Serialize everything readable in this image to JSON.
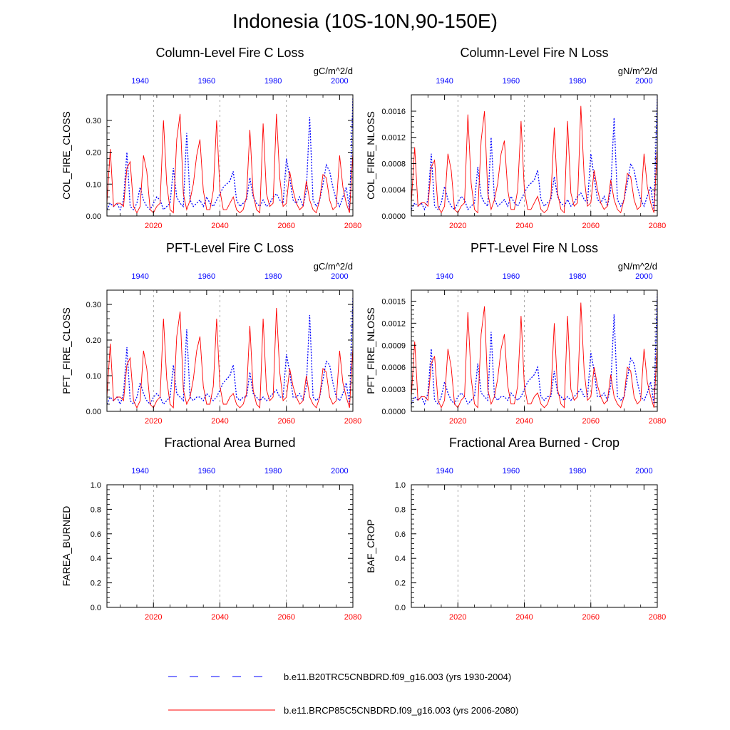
{
  "figure": {
    "title": "Indonesia (10S-10N,90-150E)"
  },
  "colors": {
    "series_hist": "#0000ff",
    "series_rcp": "#ff0000",
    "axis": "#000000",
    "grid": "#888888"
  },
  "legend": {
    "placement": "bottom-center",
    "entries": [
      {
        "label": "b.e11.B20TRC5CNBDRD.f09_g16.003 (yrs 1930-2004)",
        "color": "#0000ff",
        "style": "dashed"
      },
      {
        "label": "b.e11.BRCP85C5CNBDRD.f09_g16.003 (yrs 2006-2080)",
        "color": "#ff0000",
        "style": "solid"
      }
    ]
  },
  "chart_data": [
    {
      "type": "line",
      "title": "Column-Level Fire C Loss",
      "units": "gC/m^2/d",
      "ylabel": "COL_FIRE_CLOSS",
      "ylim": [
        0,
        0.38
      ],
      "yticks": [
        0,
        0.1,
        0.2,
        0.3
      ],
      "ytick_labels": [
        "0.00",
        "0.10",
        "0.20",
        "0.30"
      ],
      "xlim_bottom": [
        2006,
        2080
      ],
      "xticks_bottom": [
        2020,
        2040,
        2060,
        2080
      ],
      "xticks_top": [
        1940,
        1960,
        1980,
        2000
      ],
      "top_axis_offset": 76,
      "grid": "vertical dashed at bottom ticks",
      "series": [
        {
          "role": "hist",
          "x_start": 1930,
          "x_end": 2004,
          "values": [
            0.02,
            0.04,
            0.03,
            0.04,
            0.02,
            0.05,
            0.2,
            0.03,
            0.02,
            0.04,
            0.09,
            0.05,
            0.03,
            0.02,
            0.04,
            0.06,
            0.05,
            0.02,
            0.03,
            0.04,
            0.15,
            0.06,
            0.04,
            0.03,
            0.26,
            0.05,
            0.03,
            0.04,
            0.05,
            0.03,
            0.06,
            0.04,
            0.03,
            0.05,
            0.07,
            0.09,
            0.1,
            0.11,
            0.14,
            0.05,
            0.03,
            0.04,
            0.05,
            0.12,
            0.06,
            0.04,
            0.03,
            0.05,
            0.03,
            0.04,
            0.06,
            0.07,
            0.05,
            0.04,
            0.18,
            0.12,
            0.05,
            0.04,
            0.06,
            0.03,
            0.08,
            0.31,
            0.05,
            0.03,
            0.05,
            0.1,
            0.16,
            0.14,
            0.09,
            0.05,
            0.03,
            0.06,
            0.09,
            0.02,
            0.37
          ]
        },
        {
          "role": "rcp",
          "x_start": 2006,
          "x_end": 2080,
          "values": [
            0.04,
            0.21,
            0.03,
            0.04,
            0.04,
            0.03,
            0.15,
            0.17,
            0.03,
            0.01,
            0.03,
            0.19,
            0.14,
            0.02,
            0.01,
            0.03,
            0.04,
            0.3,
            0.1,
            0.02,
            0.01,
            0.24,
            0.32,
            0.07,
            0.02,
            0.05,
            0.1,
            0.19,
            0.24,
            0.08,
            0.02,
            0.02,
            0.08,
            0.3,
            0.08,
            0.02,
            0.02,
            0.04,
            0.06,
            0.02,
            0.01,
            0.02,
            0.06,
            0.27,
            0.07,
            0.02,
            0.01,
            0.29,
            0.07,
            0.03,
            0.04,
            0.32,
            0.12,
            0.03,
            0.04,
            0.14,
            0.08,
            0.04,
            0.02,
            0.03,
            0.11,
            0.05,
            0.02,
            0.01,
            0.05,
            0.13,
            0.12,
            0.05,
            0.02,
            0.03,
            0.19,
            0.09,
            0.04,
            0.01,
            0.2
          ]
        }
      ]
    },
    {
      "type": "line",
      "title": "Column-Level Fire N Loss",
      "units": "gN/m^2/d",
      "ylabel": "COL_FIRE_NLOSS",
      "ylim": [
        0,
        0.00185
      ],
      "yticks": [
        0,
        0.0004,
        0.0008,
        0.0012,
        0.0016
      ],
      "ytick_labels": [
        "0.0000",
        "0.0004",
        "0.0008",
        "0.0012",
        "0.0016"
      ],
      "xlim_bottom": [
        2006,
        2080
      ],
      "xticks_bottom": [
        2020,
        2040,
        2060,
        2080
      ],
      "xticks_top": [
        1940,
        1960,
        1980,
        2000
      ],
      "top_axis_offset": 76,
      "grid": "vertical dashed at bottom ticks",
      "series": [
        {
          "role": "hist",
          "x_start": 1930,
          "x_end": 2004,
          "values": [
            0.0001,
            0.0002,
            0.00015,
            0.0002,
            0.0001,
            0.00025,
            0.00095,
            0.00015,
            0.0001,
            0.0002,
            0.00045,
            0.00025,
            0.00015,
            0.0001,
            0.0002,
            0.0003,
            0.00025,
            0.0001,
            0.00015,
            0.0002,
            0.00075,
            0.0003,
            0.0002,
            0.00015,
            0.0012,
            0.00025,
            0.00015,
            0.0002,
            0.00025,
            0.00015,
            0.0003,
            0.0002,
            0.00015,
            0.00025,
            0.00035,
            0.00045,
            0.0005,
            0.00055,
            0.0007,
            0.00025,
            0.00015,
            0.0002,
            0.00025,
            0.0006,
            0.0003,
            0.0002,
            0.00015,
            0.00025,
            0.00015,
            0.0002,
            0.0003,
            0.00035,
            0.00025,
            0.0002,
            0.00095,
            0.0006,
            0.00025,
            0.0002,
            0.0003,
            0.00015,
            0.0004,
            0.0015,
            0.00025,
            0.00015,
            0.00025,
            0.0005,
            0.0008,
            0.0007,
            0.00045,
            0.00025,
            0.00015,
            0.0003,
            0.00045,
            0.0001,
            0.00183
          ]
        },
        {
          "role": "rcp",
          "x_start": 2006,
          "x_end": 2080,
          "values": [
            0.0002,
            0.00105,
            0.00015,
            0.0002,
            0.0002,
            0.00015,
            0.00075,
            0.00085,
            0.00015,
            5e-05,
            0.00015,
            0.00095,
            0.0007,
            0.0001,
            5e-05,
            0.00015,
            0.0002,
            0.00155,
            0.0005,
            0.0001,
            5e-05,
            0.00115,
            0.0016,
            0.00035,
            0.0001,
            0.00025,
            0.0005,
            0.00095,
            0.00115,
            0.0004,
            0.0001,
            0.0001,
            0.0004,
            0.00145,
            0.0004,
            0.0001,
            0.0001,
            0.0002,
            0.0003,
            0.0001,
            5e-05,
            0.0001,
            0.0003,
            0.00135,
            0.00035,
            0.0001,
            5e-05,
            0.00145,
            0.00035,
            0.00015,
            0.0002,
            0.00168,
            0.0006,
            0.00015,
            0.0002,
            0.0007,
            0.0004,
            0.0002,
            0.0001,
            0.00015,
            0.00055,
            0.00025,
            0.0001,
            5e-05,
            0.00025,
            0.00065,
            0.0006,
            0.00025,
            0.0001,
            0.00015,
            0.00095,
            0.00045,
            0.0002,
            5e-05,
            0.00105
          ]
        }
      ]
    },
    {
      "type": "line",
      "title": "PFT-Level Fire C Loss",
      "units": "gC/m^2/d",
      "ylabel": "PFT_FIRE_CLOSS",
      "ylim": [
        0,
        0.34
      ],
      "yticks": [
        0,
        0.1,
        0.2,
        0.3
      ],
      "ytick_labels": [
        "0.00",
        "0.10",
        "0.20",
        "0.30"
      ],
      "xlim_bottom": [
        2006,
        2080
      ],
      "xticks_bottom": [
        2020,
        2040,
        2060,
        2080
      ],
      "xticks_top": [
        1940,
        1960,
        1980,
        2000
      ],
      "top_axis_offset": 76,
      "grid": "vertical dashed at bottom ticks",
      "series": [
        {
          "role": "hist",
          "x_start": 1930,
          "x_end": 2004,
          "values": [
            0.02,
            0.04,
            0.03,
            0.04,
            0.02,
            0.05,
            0.18,
            0.03,
            0.02,
            0.04,
            0.08,
            0.05,
            0.03,
            0.02,
            0.04,
            0.05,
            0.04,
            0.02,
            0.03,
            0.04,
            0.13,
            0.05,
            0.04,
            0.03,
            0.23,
            0.04,
            0.03,
            0.04,
            0.04,
            0.03,
            0.05,
            0.04,
            0.03,
            0.04,
            0.06,
            0.08,
            0.09,
            0.1,
            0.13,
            0.04,
            0.03,
            0.04,
            0.04,
            0.11,
            0.05,
            0.04,
            0.03,
            0.04,
            0.03,
            0.04,
            0.05,
            0.06,
            0.04,
            0.04,
            0.16,
            0.11,
            0.04,
            0.04,
            0.05,
            0.03,
            0.07,
            0.27,
            0.04,
            0.03,
            0.04,
            0.09,
            0.14,
            0.13,
            0.08,
            0.04,
            0.03,
            0.05,
            0.08,
            0.02,
            0.32
          ]
        },
        {
          "role": "rcp",
          "x_start": 2006,
          "x_end": 2080,
          "values": [
            0.04,
            0.19,
            0.03,
            0.04,
            0.04,
            0.03,
            0.13,
            0.15,
            0.03,
            0.01,
            0.03,
            0.17,
            0.12,
            0.02,
            0.01,
            0.03,
            0.04,
            0.26,
            0.09,
            0.02,
            0.01,
            0.21,
            0.28,
            0.06,
            0.02,
            0.04,
            0.09,
            0.17,
            0.21,
            0.07,
            0.02,
            0.02,
            0.07,
            0.26,
            0.07,
            0.02,
            0.02,
            0.04,
            0.05,
            0.02,
            0.01,
            0.02,
            0.05,
            0.24,
            0.06,
            0.02,
            0.01,
            0.26,
            0.06,
            0.03,
            0.04,
            0.29,
            0.11,
            0.03,
            0.04,
            0.12,
            0.07,
            0.04,
            0.02,
            0.03,
            0.1,
            0.04,
            0.02,
            0.01,
            0.04,
            0.12,
            0.11,
            0.04,
            0.02,
            0.03,
            0.17,
            0.08,
            0.04,
            0.01,
            0.18
          ]
        }
      ]
    },
    {
      "type": "line",
      "title": "PFT-Level Fire N Loss",
      "units": "gN/m^2/d",
      "ylabel": "PFT_FIRE_NLOSS",
      "ylim": [
        0,
        0.00165
      ],
      "yticks": [
        0,
        0.0003,
        0.0006,
        0.0009,
        0.0012,
        0.0015
      ],
      "ytick_labels": [
        "0.0000",
        "0.0003",
        "0.0006",
        "0.0009",
        "0.0012",
        "0.0015"
      ],
      "xlim_bottom": [
        2006,
        2080
      ],
      "xticks_bottom": [
        2020,
        2040,
        2060,
        2080
      ],
      "xticks_top": [
        1940,
        1960,
        1980,
        2000
      ],
      "top_axis_offset": 76,
      "grid": "vertical dashed at bottom ticks",
      "series": [
        {
          "role": "hist",
          "x_start": 1930,
          "x_end": 2004,
          "values": [
            0.0001,
            0.0002,
            0.00015,
            0.0002,
            0.0001,
            0.00025,
            0.00085,
            0.00015,
            0.0001,
            0.0002,
            0.0004,
            0.00025,
            0.00015,
            0.0001,
            0.0002,
            0.00025,
            0.0002,
            0.0001,
            0.00015,
            0.0002,
            0.00065,
            0.00025,
            0.0002,
            0.00015,
            0.00108,
            0.0002,
            0.00015,
            0.0002,
            0.0002,
            0.00015,
            0.00025,
            0.0002,
            0.00015,
            0.0002,
            0.0003,
            0.0004,
            0.00045,
            0.0005,
            0.0006,
            0.0002,
            0.00015,
            0.0002,
            0.0002,
            0.00055,
            0.00025,
            0.0002,
            0.00015,
            0.0002,
            0.00015,
            0.0002,
            0.00025,
            0.0003,
            0.0002,
            0.0002,
            0.0008,
            0.00055,
            0.0002,
            0.0002,
            0.00025,
            0.00015,
            0.00035,
            0.00132,
            0.0002,
            0.00015,
            0.0002,
            0.00045,
            0.00072,
            0.00065,
            0.0004,
            0.0002,
            0.00015,
            0.00025,
            0.0004,
            0.0001,
            0.0016
          ]
        },
        {
          "role": "rcp",
          "x_start": 2006,
          "x_end": 2080,
          "values": [
            0.0002,
            0.00095,
            0.00015,
            0.0002,
            0.0002,
            0.00015,
            0.00065,
            0.00075,
            0.00015,
            5e-05,
            0.00015,
            0.00085,
            0.0006,
            0.0001,
            5e-05,
            0.00015,
            0.0002,
            0.00135,
            0.00045,
            0.0001,
            5e-05,
            0.00105,
            0.00143,
            0.0003,
            0.0001,
            0.0002,
            0.00045,
            0.00085,
            0.00105,
            0.00035,
            0.0001,
            0.0001,
            0.00035,
            0.0013,
            0.00035,
            0.0001,
            0.0001,
            0.0002,
            0.00025,
            0.0001,
            5e-05,
            0.0001,
            0.00025,
            0.0012,
            0.0003,
            0.0001,
            5e-05,
            0.0013,
            0.0003,
            0.00015,
            0.0002,
            0.00148,
            0.00055,
            0.00015,
            0.0002,
            0.0006,
            0.00035,
            0.0002,
            0.0001,
            0.00015,
            0.0005,
            0.0002,
            0.0001,
            5e-05,
            0.0002,
            0.0006,
            0.00055,
            0.0002,
            0.0001,
            0.00015,
            0.00085,
            0.0004,
            0.0002,
            5e-05,
            0.0009
          ]
        }
      ]
    },
    {
      "type": "line",
      "title": "Fractional Area Burned",
      "units": "",
      "ylabel": "FAREA_BURNED",
      "ylim": [
        0,
        1.0
      ],
      "yticks": [
        0,
        0.2,
        0.4,
        0.6,
        0.8,
        1.0
      ],
      "ytick_labels": [
        "0.0",
        "0.2",
        "0.4",
        "0.6",
        "0.8",
        "1.0"
      ],
      "xlim_bottom": [
        2006,
        2080
      ],
      "xticks_bottom": [
        2020,
        2040,
        2060,
        2080
      ],
      "xticks_top": [
        1940,
        1960,
        1980,
        2000
      ],
      "top_axis_offset": 76,
      "grid": "vertical dashed at bottom ticks",
      "series": []
    },
    {
      "type": "line",
      "title": "Fractional Area Burned - Crop",
      "units": "",
      "ylabel": "BAF_CROP",
      "ylim": [
        0,
        1.0
      ],
      "yticks": [
        0,
        0.2,
        0.4,
        0.6,
        0.8,
        1.0
      ],
      "ytick_labels": [
        "0.0",
        "0.2",
        "0.4",
        "0.6",
        "0.8",
        "1.0"
      ],
      "xlim_bottom": [
        2006,
        2080
      ],
      "xticks_bottom": [
        2020,
        2040,
        2060,
        2080
      ],
      "xticks_top": [
        1940,
        1960,
        1980,
        2000
      ],
      "top_axis_offset": 76,
      "grid": "vertical dashed at bottom ticks",
      "series": []
    }
  ]
}
